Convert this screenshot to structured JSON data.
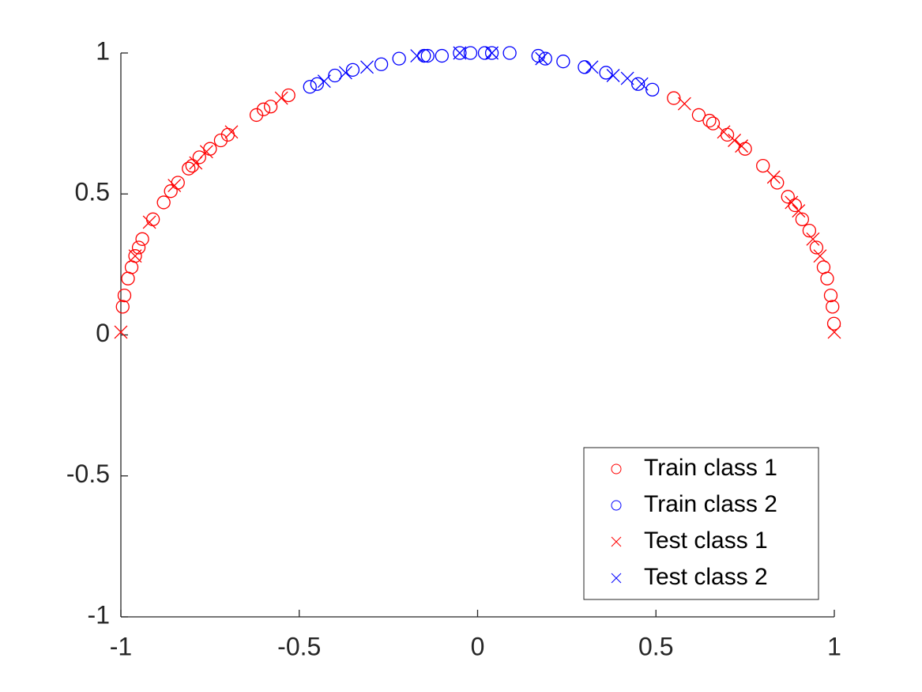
{
  "chart_data": {
    "type": "scatter",
    "xlim": [
      -1,
      1
    ],
    "ylim": [
      -1,
      1
    ],
    "xticks": [
      -1,
      -0.5,
      0,
      0.5,
      1
    ],
    "yticks": [
      -1,
      -0.5,
      0,
      0.5,
      1
    ],
    "legend": "bottom-right",
    "series": [
      {
        "name": "Train class 1",
        "color": "#ff0000",
        "marker": "o",
        "x": [
          -0.995,
          -0.99,
          -0.98,
          -0.97,
          -0.96,
          -0.95,
          -0.94,
          -0.91,
          -0.88,
          -0.86,
          -0.84,
          -0.81,
          -0.8,
          -0.78,
          -0.75,
          -0.72,
          -0.7,
          -0.62,
          -0.6,
          -0.58,
          -0.53,
          0.55,
          0.62,
          0.65,
          0.66,
          0.7,
          0.75,
          0.8,
          0.84,
          0.87,
          0.89,
          0.91,
          0.93,
          0.95,
          0.97,
          0.98,
          0.99,
          0.995,
          0.999
        ],
        "values": [
          0.1,
          0.14,
          0.2,
          0.24,
          0.28,
          0.31,
          0.34,
          0.41,
          0.47,
          0.51,
          0.54,
          0.59,
          0.6,
          0.63,
          0.66,
          0.69,
          0.71,
          0.78,
          0.8,
          0.81,
          0.85,
          0.84,
          0.78,
          0.76,
          0.75,
          0.71,
          0.66,
          0.6,
          0.54,
          0.49,
          0.46,
          0.41,
          0.37,
          0.31,
          0.24,
          0.2,
          0.14,
          0.1,
          0.04
        ]
      },
      {
        "name": "Train class 2",
        "color": "#0000ff",
        "marker": "o",
        "x": [
          -0.47,
          -0.45,
          -0.4,
          -0.35,
          -0.27,
          -0.22,
          -0.15,
          -0.14,
          -0.1,
          -0.05,
          -0.02,
          0.02,
          0.04,
          0.09,
          0.17,
          0.19,
          0.24,
          0.3,
          0.36,
          0.45,
          0.49
        ],
        "values": [
          0.88,
          0.89,
          0.92,
          0.94,
          0.96,
          0.98,
          0.99,
          0.99,
          0.99,
          1.0,
          1.0,
          1.0,
          1.0,
          1.0,
          0.99,
          0.98,
          0.97,
          0.95,
          0.93,
          0.89,
          0.87
        ]
      },
      {
        "name": "Test class 1",
        "color": "#ff0000",
        "marker": "x",
        "x": [
          -1.0,
          -0.96,
          -0.92,
          -0.85,
          -0.79,
          -0.76,
          -0.69,
          -0.55,
          0.58,
          0.69,
          0.72,
          0.74,
          0.83,
          0.88,
          0.9,
          0.94,
          0.96,
          1.0
        ],
        "values": [
          0.01,
          0.28,
          0.4,
          0.53,
          0.61,
          0.65,
          0.72,
          0.84,
          0.82,
          0.72,
          0.69,
          0.67,
          0.56,
          0.47,
          0.44,
          0.34,
          0.28,
          0.01
        ]
      },
      {
        "name": "Test class 2",
        "color": "#0000ff",
        "marker": "x",
        "x": [
          -0.43,
          -0.37,
          -0.31,
          -0.17,
          -0.05,
          0.04,
          0.18,
          0.32,
          0.38,
          0.42,
          0.46
        ],
        "values": [
          0.9,
          0.93,
          0.95,
          0.99,
          1.0,
          1.0,
          0.98,
          0.95,
          0.92,
          0.91,
          0.89
        ]
      }
    ]
  }
}
